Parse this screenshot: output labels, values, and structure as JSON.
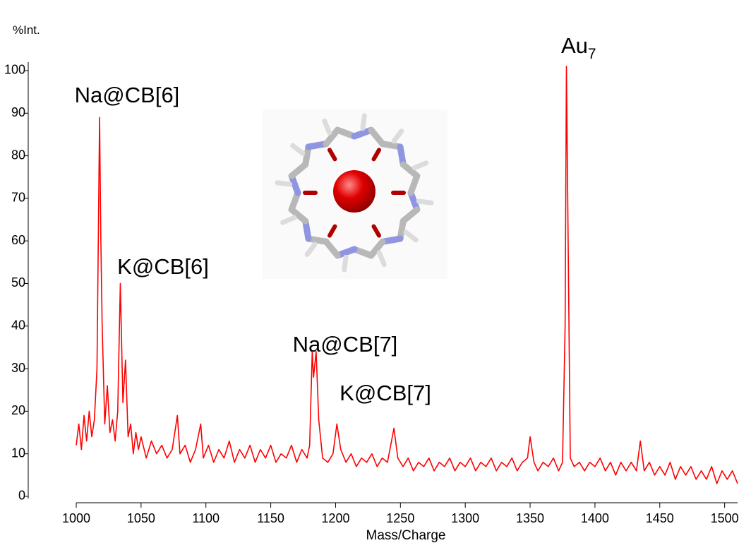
{
  "chart_data": {
    "type": "line",
    "y_label": "%Int.",
    "x_label": "Mass/Charge",
    "annotations": [
      "Na@CB[6]",
      "K@CB[6]",
      "Na@CB[7]",
      "K@CB[7]"
    ],
    "peak_label": {
      "text": "Au",
      "subscript": "7"
    },
    "color": "#ff0000",
    "xlim": [
      1000,
      1510
    ],
    "ylim": [
      -1.5,
      102
    ],
    "xticks": [
      1000,
      1050,
      1100,
      1150,
      1200,
      1250,
      1300,
      1350,
      1400,
      1450,
      1500
    ],
    "yticks": [
      0,
      10,
      20,
      30,
      40,
      50,
      60,
      70,
      80,
      90,
      100
    ],
    "x": [
      1000,
      1002,
      1004,
      1006,
      1008,
      1010,
      1012,
      1014,
      1016,
      1018,
      1019,
      1020,
      1022,
      1024,
      1026,
      1028,
      1030,
      1032,
      1034,
      1036,
      1038,
      1040,
      1042,
      1044,
      1046,
      1048,
      1050,
      1054,
      1058,
      1062,
      1066,
      1070,
      1074,
      1078,
      1080,
      1084,
      1088,
      1092,
      1096,
      1098,
      1102,
      1106,
      1110,
      1114,
      1118,
      1122,
      1126,
      1130,
      1134,
      1138,
      1142,
      1146,
      1150,
      1154,
      1158,
      1162,
      1166,
      1170,
      1174,
      1178,
      1180,
      1182,
      1183,
      1185,
      1187,
      1190,
      1194,
      1198,
      1201,
      1204,
      1208,
      1212,
      1216,
      1220,
      1224,
      1228,
      1232,
      1236,
      1240,
      1245,
      1248,
      1252,
      1256,
      1260,
      1264,
      1268,
      1272,
      1276,
      1280,
      1284,
      1288,
      1292,
      1296,
      1300,
      1304,
      1308,
      1312,
      1316,
      1320,
      1324,
      1328,
      1332,
      1336,
      1340,
      1344,
      1348,
      1350,
      1353,
      1356,
      1360,
      1364,
      1368,
      1372,
      1375,
      1377,
      1378,
      1379,
      1381,
      1384,
      1388,
      1392,
      1396,
      1400,
      1404,
      1408,
      1412,
      1416,
      1420,
      1424,
      1428,
      1432,
      1435,
      1438,
      1442,
      1446,
      1450,
      1454,
      1458,
      1462,
      1466,
      1470,
      1474,
      1478,
      1482,
      1486,
      1490,
      1494,
      1498,
      1502,
      1506,
      1510
    ],
    "values": [
      12,
      17,
      11,
      19,
      13,
      20,
      14,
      18,
      30,
      89,
      60,
      40,
      17,
      26,
      15,
      18,
      13,
      20,
      50,
      22,
      32,
      14,
      17,
      10,
      15,
      11,
      14,
      9,
      13,
      10,
      12,
      9,
      11,
      19,
      10,
      12,
      8,
      11,
      17,
      9,
      12,
      8,
      11,
      9,
      13,
      8,
      11,
      9,
      12,
      8,
      11,
      9,
      12,
      8,
      10,
      9,
      12,
      8,
      11,
      9,
      12,
      34,
      28,
      34,
      18,
      9,
      8,
      10,
      17,
      11,
      8,
      10,
      7,
      9,
      8,
      10,
      7,
      9,
      8,
      16,
      9,
      7,
      9,
      6,
      8,
      7,
      9,
      6,
      8,
      7,
      9,
      6,
      8,
      7,
      9,
      6,
      8,
      7,
      9,
      6,
      8,
      7,
      9,
      6,
      8,
      9,
      14,
      8,
      6,
      8,
      7,
      9,
      6,
      8,
      40,
      101,
      70,
      9,
      7,
      8,
      6,
      8,
      7,
      9,
      6,
      8,
      5,
      8,
      6,
      8,
      6,
      13,
      6,
      8,
      5,
      7,
      5,
      8,
      4,
      7,
      5,
      7,
      4,
      6,
      4,
      7,
      3,
      6,
      4,
      6,
      3
    ]
  }
}
